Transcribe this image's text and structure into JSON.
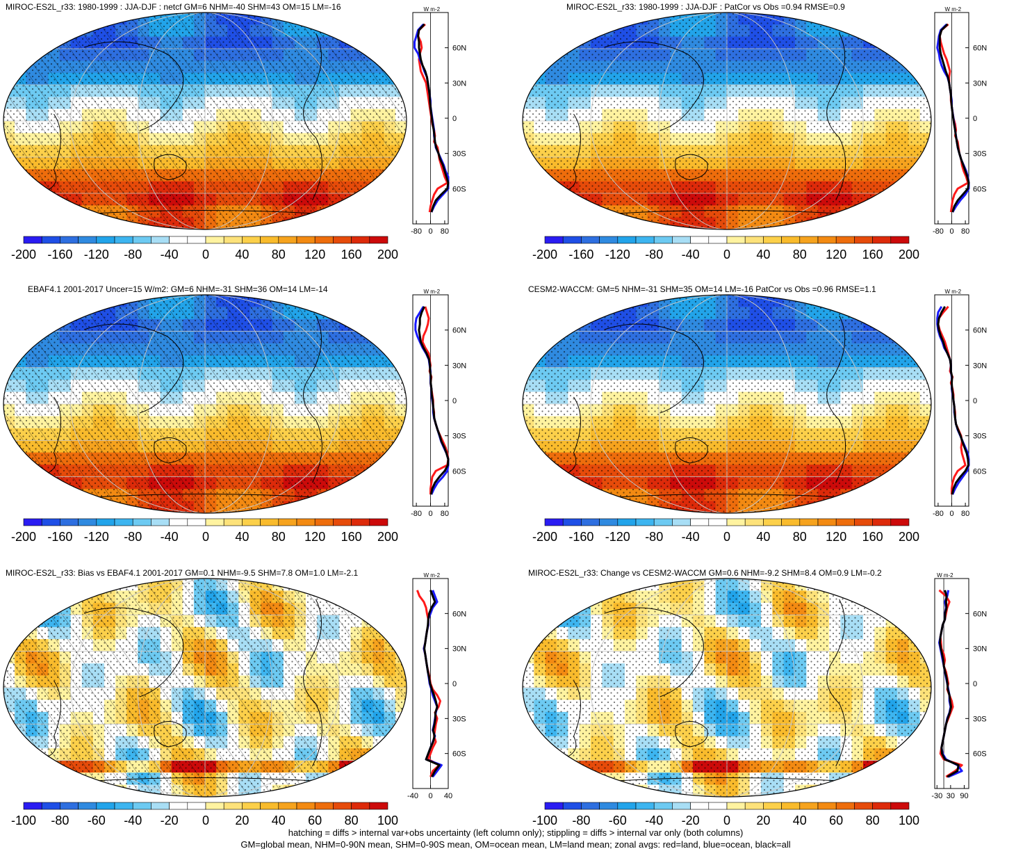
{
  "colors": {
    "palette": [
      "#2a1cf2",
      "#1f4fe6",
      "#2e6fe0",
      "#2f8ae0",
      "#22a4ea",
      "#3db5f0",
      "#6dcaf2",
      "#a8def5",
      "#ffffff",
      "#ffffff",
      "#fff3a0",
      "#fde27a",
      "#fcd04a",
      "#f9bb2c",
      "#f6a31e",
      "#f38a12",
      "#ee6d0c",
      "#e64b0a",
      "#dd2a0a",
      "#cc0a0a"
    ],
    "curve_land": "#ff1a1a",
    "curve_ocean": "#1a1aff",
    "curve_all": "#000000",
    "graticule": "#c8c8c8",
    "coast": "#000000"
  },
  "chart_data": [
    {
      "type": "heatmap",
      "title": "MIROC-ES2L_r33: 1980-1999 : JJA-DJF : netcf GM=6 NHM=-40 SHM=43 OM=15 LM=-16",
      "projection": "Robinson",
      "hatching": true,
      "stippling": true,
      "colorbar": {
        "ticks": [
          -200,
          -160,
          -120,
          -80,
          -40,
          0,
          40,
          80,
          120,
          160,
          200
        ],
        "range": [
          -200,
          200
        ]
      },
      "zonal_mean": {
        "unit": "W m-2",
        "xlim": [
          -100,
          100
        ],
        "xticks": [
          -80,
          0,
          80
        ],
        "ylim": [
          -90,
          90
        ],
        "yticks": [
          "60N",
          "30N",
          "0",
          "30S",
          "60S"
        ],
        "lat": [
          80,
          75,
          70,
          65,
          60,
          55,
          50,
          45,
          40,
          35,
          30,
          25,
          20,
          15,
          10,
          5,
          0,
          -5,
          -10,
          -15,
          -20,
          -25,
          -30,
          -35,
          -40,
          -45,
          -50,
          -55,
          -60,
          -65,
          -70,
          -75,
          -80
        ],
        "land": [
          -30,
          -65,
          -70,
          -55,
          -50,
          -60,
          -65,
          -60,
          -55,
          -40,
          -25,
          -20,
          -15,
          -10,
          -5,
          0,
          5,
          10,
          20,
          25,
          20,
          40,
          45,
          50,
          60,
          70,
          80,
          95,
          40,
          20,
          10,
          0,
          -5
        ],
        "ocean": [
          -40,
          -70,
          -80,
          -90,
          -90,
          -70,
          -60,
          -45,
          -35,
          -20,
          -15,
          -10,
          -5,
          0,
          0,
          5,
          10,
          15,
          20,
          20,
          25,
          30,
          45,
          60,
          75,
          85,
          100,
          100,
          100,
          70,
          40,
          20,
          5
        ],
        "all": [
          -35,
          -65,
          -70,
          -65,
          -65,
          -60,
          -55,
          -45,
          -30,
          -20,
          -15,
          -10,
          -5,
          -3,
          0,
          3,
          8,
          12,
          18,
          22,
          25,
          32,
          45,
          55,
          70,
          80,
          90,
          100,
          95,
          60,
          30,
          15,
          5
        ]
      }
    },
    {
      "type": "heatmap",
      "title": "MIROC-ES2L_r33: 1980-1999 : JJA-DJF : PatCor vs Obs =0.94 RMSE=0.9",
      "projection": "Robinson",
      "hatching": false,
      "stippling": true,
      "colorbar": {
        "ticks": [
          -200,
          -160,
          -120,
          -80,
          -40,
          0,
          40,
          80,
          120,
          160,
          200
        ],
        "range": [
          -200,
          200
        ]
      },
      "zonal_mean": {
        "unit": "W m-2",
        "xlim": [
          -100,
          100
        ],
        "xticks": [
          -80,
          0,
          80
        ],
        "ylim": [
          -90,
          90
        ],
        "yticks": [
          "60N",
          "30N",
          "0",
          "30S",
          "60S"
        ],
        "lat": [
          80,
          75,
          70,
          65,
          60,
          55,
          50,
          45,
          40,
          35,
          30,
          25,
          20,
          15,
          10,
          5,
          0,
          -5,
          -10,
          -15,
          -20,
          -25,
          -30,
          -35,
          -40,
          -45,
          -50,
          -55,
          -60,
          -65,
          -70,
          -75,
          -80
        ],
        "land": [
          -20,
          -60,
          -70,
          -65,
          -55,
          -45,
          -30,
          -20,
          -10,
          -15,
          -15,
          -10,
          -5,
          -5,
          0,
          5,
          10,
          20,
          25,
          20,
          35,
          40,
          45,
          55,
          60,
          70,
          85,
          95,
          35,
          15,
          5,
          0,
          -5
        ],
        "ocean": [
          -30,
          -65,
          -75,
          -80,
          -85,
          -75,
          -70,
          -60,
          -45,
          -25,
          -15,
          -10,
          -5,
          0,
          0,
          5,
          10,
          15,
          20,
          25,
          30,
          35,
          45,
          55,
          70,
          85,
          95,
          100,
          100,
          80,
          50,
          25,
          5
        ],
        "all": [
          -25,
          -60,
          -70,
          -70,
          -70,
          -65,
          -55,
          -45,
          -35,
          -22,
          -15,
          -10,
          -5,
          -3,
          0,
          4,
          9,
          14,
          20,
          24,
          30,
          36,
          45,
          55,
          68,
          80,
          92,
          100,
          95,
          65,
          35,
          15,
          5
        ]
      }
    },
    {
      "type": "heatmap",
      "title": "EBAF4.1 2001-2017 Uncer=15 W/m2: GM=6 NHM=-31 SHM=36 OM=14 LM=-14",
      "projection": "Robinson",
      "hatching": true,
      "stippling": true,
      "colorbar": {
        "ticks": [
          -200,
          -160,
          -120,
          -80,
          -40,
          0,
          40,
          80,
          120,
          160,
          200
        ],
        "range": [
          -200,
          200
        ]
      },
      "zonal_mean": {
        "unit": "W m-2",
        "xlim": [
          -100,
          100
        ],
        "xticks": [
          -80,
          0,
          80
        ],
        "ylim": [
          -90,
          90
        ],
        "yticks": [
          "60N",
          "30N",
          "0",
          "30S",
          "60S"
        ],
        "lat": [
          80,
          75,
          70,
          65,
          60,
          55,
          50,
          45,
          40,
          35,
          30,
          25,
          20,
          15,
          10,
          5,
          0,
          -5,
          -10,
          -15,
          -20,
          -25,
          -30,
          -35,
          -40,
          -45,
          -50,
          -55,
          -60,
          -65,
          -70,
          -75,
          -80
        ],
        "land": [
          -30,
          -20,
          -10,
          -15,
          -25,
          -40,
          -45,
          -30,
          -10,
          -5,
          0,
          -5,
          5,
          0,
          5,
          10,
          15,
          15,
          20,
          20,
          30,
          40,
          55,
          70,
          85,
          95,
          100,
          95,
          30,
          10,
          5,
          0,
          0
        ],
        "ocean": [
          -40,
          -60,
          -80,
          -85,
          -85,
          -75,
          -60,
          -45,
          -25,
          -10,
          -5,
          0,
          0,
          0,
          5,
          5,
          10,
          15,
          15,
          20,
          30,
          40,
          50,
          60,
          75,
          90,
          100,
          100,
          95,
          70,
          40,
          20,
          5
        ],
        "all": [
          -35,
          -50,
          -60,
          -60,
          -65,
          -60,
          -55,
          -40,
          -22,
          -8,
          -3,
          -2,
          2,
          1,
          5,
          7,
          12,
          15,
          18,
          21,
          30,
          40,
          52,
          62,
          78,
          90,
          100,
          98,
          80,
          50,
          25,
          10,
          3
        ]
      }
    },
    {
      "type": "heatmap",
      "title": "CESM2-WACCM: GM=5 NHM=-31 SHM=35 OM=14 LM=-16 PatCor vs Obs =0.96 RMSE=1.1",
      "projection": "Robinson",
      "hatching": false,
      "stippling": true,
      "colorbar": {
        "ticks": [
          -200,
          -160,
          -120,
          -80,
          -40,
          0,
          40,
          80,
          120,
          160,
          200
        ],
        "range": [
          -200,
          200
        ]
      },
      "zonal_mean": {
        "unit": "W m-2",
        "xlim": [
          -100,
          100
        ],
        "xticks": [
          -80,
          0,
          80
        ],
        "ylim": [
          -90,
          90
        ],
        "yticks": [
          "60N",
          "30N",
          "0",
          "30S",
          "60S"
        ],
        "lat": [
          80,
          75,
          70,
          65,
          60,
          55,
          50,
          45,
          40,
          35,
          30,
          25,
          20,
          15,
          10,
          5,
          0,
          -5,
          -10,
          -15,
          -20,
          -25,
          -30,
          -35,
          -40,
          -45,
          -50,
          -55,
          -60,
          -65,
          -70,
          -75,
          -80
        ],
        "land": [
          -20,
          -50,
          -75,
          -80,
          -70,
          -55,
          -40,
          -30,
          -20,
          -10,
          -5,
          -10,
          5,
          -5,
          5,
          10,
          10,
          15,
          20,
          20,
          25,
          40,
          55,
          60,
          55,
          60,
          70,
          80,
          35,
          15,
          5,
          0,
          0
        ],
        "ocean": [
          -60,
          -80,
          -85,
          -85,
          -80,
          -70,
          -55,
          -45,
          -25,
          -10,
          -5,
          -5,
          0,
          0,
          0,
          5,
          10,
          15,
          15,
          20,
          25,
          35,
          50,
          65,
          80,
          95,
          100,
          100,
          90,
          65,
          40,
          20,
          5
        ],
        "all": [
          -40,
          -60,
          -75,
          -80,
          -75,
          -65,
          -50,
          -40,
          -25,
          -10,
          -5,
          -5,
          2,
          0,
          2,
          7,
          10,
          15,
          17,
          20,
          25,
          37,
          52,
          63,
          75,
          88,
          95,
          98,
          80,
          50,
          25,
          10,
          3
        ]
      }
    },
    {
      "type": "heatmap",
      "title": "MIROC-ES2L_r33: Bias vs EBAF4.1 2001-2017 GM=0.1 NHM=-9.5 SHM=7.8 OM=1.0 LM=-2.1",
      "projection": "Robinson",
      "hatching": true,
      "stippling": true,
      "colorbar": {
        "ticks": [
          -100,
          -80,
          -60,
          -40,
          -20,
          0,
          20,
          40,
          60,
          80,
          100
        ],
        "range": [
          -110,
          110
        ]
      },
      "zonal_mean": {
        "unit": "W m-2",
        "xlim": [
          -40,
          40
        ],
        "xticks": [
          -40,
          0,
          40
        ],
        "ylim": [
          -90,
          90
        ],
        "yticks": [
          "60N",
          "30N",
          "0",
          "30S",
          "60S"
        ],
        "lat": [
          80,
          75,
          70,
          65,
          60,
          55,
          50,
          45,
          40,
          35,
          30,
          25,
          20,
          15,
          10,
          5,
          0,
          -5,
          -10,
          -15,
          -20,
          -25,
          -30,
          -35,
          -40,
          -45,
          -50,
          -55,
          -60,
          -65,
          -70,
          -75,
          -80
        ],
        "land": [
          -30,
          -25,
          -15,
          -10,
          -8,
          -5,
          -5,
          -8,
          -10,
          -12,
          -15,
          -12,
          -10,
          -8,
          -5,
          -2,
          0,
          5,
          15,
          22,
          18,
          10,
          15,
          12,
          10,
          8,
          12,
          5,
          0,
          -5,
          20,
          5,
          0
        ],
        "ocean": [
          5,
          10,
          15,
          5,
          0,
          -5,
          -5,
          -8,
          -10,
          -12,
          -15,
          -12,
          -10,
          -8,
          -6,
          -4,
          -2,
          2,
          5,
          10,
          15,
          12,
          10,
          8,
          5,
          10,
          5,
          0,
          -5,
          -10,
          25,
          15,
          5
        ],
        "all": [
          0,
          5,
          10,
          2,
          -3,
          -5,
          -6,
          -8,
          -10,
          -12,
          -14,
          -12,
          -10,
          -8,
          -6,
          -3,
          -1,
          3,
          8,
          12,
          15,
          11,
          11,
          9,
          6,
          9,
          6,
          0,
          -5,
          -10,
          20,
          10,
          3
        ]
      }
    },
    {
      "type": "heatmap",
      "title": "MIROC-ES2L_r33: Change vs CESM2-WACCM GM=0.6 NHM=-9.2 SHM=8.4 OM=0.9 LM=-0.2",
      "projection": "Robinson",
      "hatching": false,
      "stippling": true,
      "colorbar": {
        "ticks": [
          -100,
          -80,
          -60,
          -40,
          -20,
          0,
          20,
          40,
          60,
          80,
          100
        ],
        "range": [
          -110,
          110
        ]
      },
      "zonal_mean": {
        "unit": "W m-2",
        "xlim": [
          -40,
          110
        ],
        "xticks": [
          -30,
          30,
          90
        ],
        "ylim": [
          -90,
          90
        ],
        "yticks": [
          "60N",
          "30N",
          "0",
          "30S",
          "60S"
        ],
        "lat": [
          80,
          75,
          70,
          65,
          60,
          55,
          50,
          45,
          40,
          35,
          30,
          25,
          20,
          15,
          10,
          5,
          0,
          -5,
          -10,
          -15,
          -20,
          -25,
          -30,
          -35,
          -40,
          -45,
          -50,
          -55,
          -60,
          -65,
          -70,
          -75,
          -80
        ],
        "land": [
          -20,
          10,
          25,
          15,
          10,
          5,
          -5,
          -10,
          -15,
          -12,
          -10,
          0,
          5,
          0,
          10,
          15,
          20,
          15,
          25,
          35,
          40,
          30,
          20,
          10,
          5,
          0,
          -5,
          -10,
          -15,
          0,
          80,
          50,
          10
        ],
        "ocean": [
          20,
          15,
          5,
          10,
          5,
          5,
          -5,
          -10,
          -15,
          -20,
          -15,
          -10,
          -5,
          0,
          5,
          10,
          15,
          20,
          25,
          25,
          30,
          25,
          15,
          10,
          5,
          0,
          -5,
          -10,
          -5,
          10,
          60,
          80,
          20
        ],
        "all": [
          5,
          12,
          10,
          12,
          6,
          5,
          -5,
          -10,
          -15,
          -17,
          -13,
          -7,
          -2,
          0,
          6,
          12,
          16,
          18,
          25,
          28,
          32,
          26,
          17,
          10,
          5,
          0,
          -5,
          -10,
          -8,
          5,
          65,
          60,
          15
        ]
      }
    }
  ],
  "footer": {
    "line1": "hatching = diffs > internal var+obs uncertainty (left column only); stippling = diffs > internal var only (both columns)",
    "line2": "GM=global mean, NHM=0-90N mean, SHM=0-90S mean, OM=ocean mean, LM=land mean; zonal avgs: red=land, blue=ocean, black=all"
  }
}
